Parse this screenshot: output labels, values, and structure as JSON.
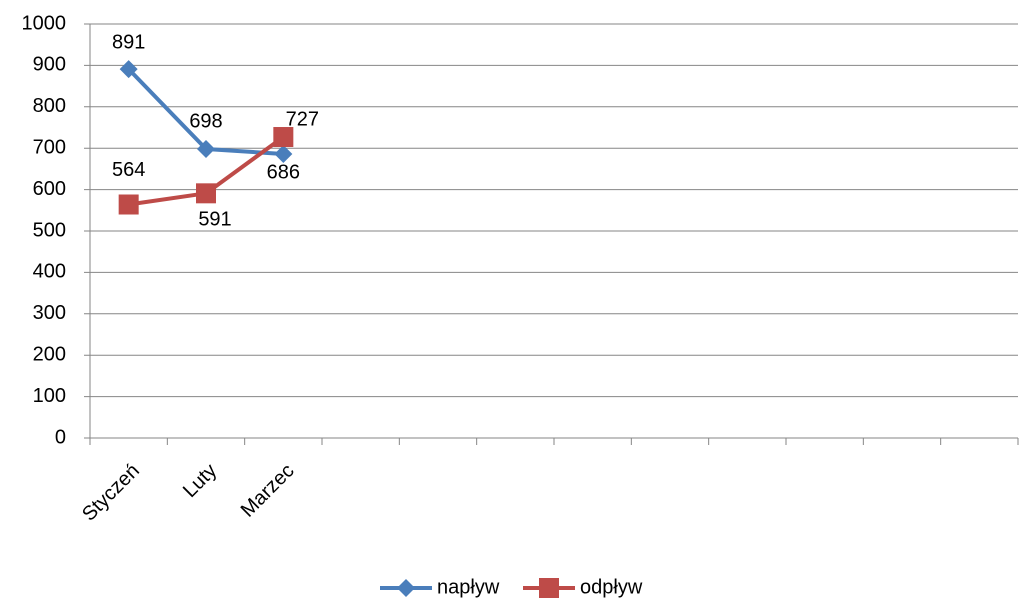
{
  "chart_data": {
    "type": "line",
    "categories": [
      "Styczeń",
      "Luty",
      "Marzec",
      null,
      null,
      null,
      null,
      null,
      null,
      null,
      null,
      null
    ],
    "series": [
      {
        "name": "napływ",
        "color": "#4a7ebb",
        "marker": "diamond",
        "values": [
          891,
          698,
          686,
          null,
          null,
          null,
          null,
          null,
          null,
          null,
          null,
          null
        ]
      },
      {
        "name": "odpływ",
        "color": "#be4b48",
        "marker": "square",
        "values": [
          564,
          591,
          727,
          null,
          null,
          null,
          null,
          null,
          null,
          null,
          null,
          null
        ]
      }
    ],
    "ylim": [
      0,
      1000
    ],
    "yticks": [
      0,
      100,
      200,
      300,
      400,
      500,
      600,
      700,
      800,
      900,
      1000
    ],
    "grid": true,
    "legend": "bottom"
  }
}
